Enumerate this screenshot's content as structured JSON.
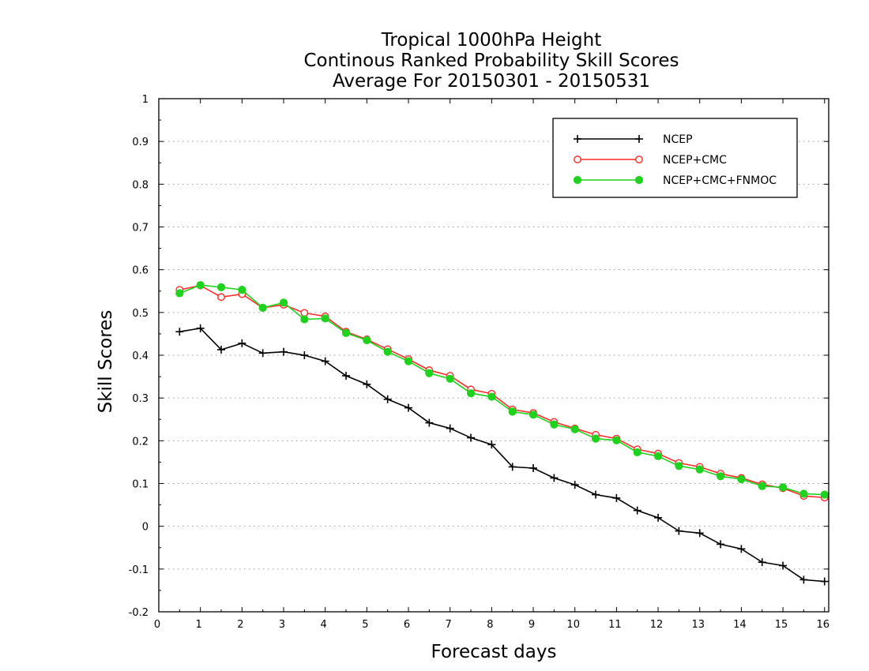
{
  "chart_data": {
    "type": "line",
    "title_lines": [
      "Tropical 1000hPa Height",
      "Continous Ranked Probability Skill Scores",
      "Average For 20150301 - 20150531"
    ],
    "xlabel": "Forecast days",
    "ylabel": "Skill Scores",
    "xlim": [
      0,
      16.1
    ],
    "ylim": [
      -0.2,
      1
    ],
    "xticks": [
      0,
      1,
      2,
      3,
      4,
      5,
      6,
      7,
      8,
      9,
      10,
      11,
      12,
      13,
      14,
      15,
      16
    ],
    "yticks": [
      -0.2,
      -0.1,
      0,
      0.1,
      0.2,
      0.3,
      0.4,
      0.5,
      0.6,
      0.7,
      0.8,
      0.9,
      1
    ],
    "ytick_labels": [
      "-0.2",
      "-0.1",
      "0",
      "0.1",
      "0.2",
      "0.3",
      "0.4",
      "0.5",
      "0.6",
      "0.7",
      "0.8",
      "0.9",
      "1"
    ],
    "grid": "horizontal dotted",
    "legend_position": "top-right",
    "x": [
      0.5,
      1,
      1.5,
      2,
      2.5,
      3,
      3.5,
      4,
      4.5,
      5,
      5.5,
      6,
      6.5,
      7,
      7.5,
      8,
      8.5,
      9,
      9.5,
      10,
      10.5,
      11,
      11.5,
      12,
      12.5,
      13,
      13.5,
      14,
      14.5,
      15,
      15.5,
      16
    ],
    "series": [
      {
        "name": "NCEP",
        "color": "#000000",
        "marker": "plus",
        "values": [
          0.455,
          0.463,
          0.413,
          0.428,
          0.405,
          0.408,
          0.4,
          0.386,
          0.352,
          0.332,
          0.297,
          0.277,
          0.242,
          0.229,
          0.207,
          0.191,
          0.139,
          0.136,
          0.113,
          0.097,
          0.074,
          0.066,
          0.037,
          0.02,
          -0.011,
          -0.016,
          -0.042,
          -0.053,
          -0.084,
          -0.092,
          -0.125,
          -0.129
        ]
      },
      {
        "name": "NCEP+CMC",
        "color": "#ff2a2a",
        "marker": "open-circle",
        "values": [
          0.553,
          0.563,
          0.536,
          0.543,
          0.511,
          0.518,
          0.499,
          0.491,
          0.455,
          0.437,
          0.414,
          0.391,
          0.365,
          0.352,
          0.32,
          0.31,
          0.273,
          0.265,
          0.244,
          0.229,
          0.214,
          0.205,
          0.18,
          0.17,
          0.148,
          0.139,
          0.123,
          0.113,
          0.098,
          0.089,
          0.071,
          0.067
        ]
      },
      {
        "name": "NCEP+CMC+FNMOC",
        "color": "#1ed21e",
        "marker": "filled-circle",
        "values": [
          0.545,
          0.564,
          0.559,
          0.553,
          0.511,
          0.523,
          0.484,
          0.486,
          0.452,
          0.435,
          0.408,
          0.386,
          0.358,
          0.345,
          0.311,
          0.303,
          0.268,
          0.261,
          0.238,
          0.227,
          0.205,
          0.201,
          0.173,
          0.164,
          0.141,
          0.133,
          0.117,
          0.11,
          0.094,
          0.091,
          0.076,
          0.074
        ]
      }
    ]
  }
}
